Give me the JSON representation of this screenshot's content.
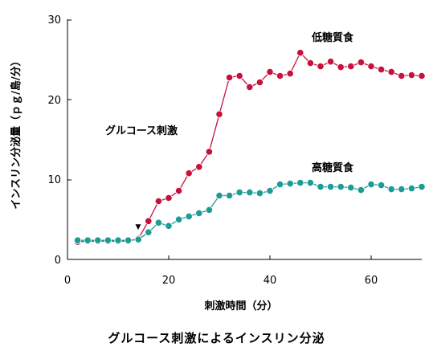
{
  "chart_data": {
    "type": "line",
    "ylabel": "インスリン分泌量（ｐｇ/島/分）",
    "xlabel": "刺激時間（分）",
    "xlim": [
      0,
      70
    ],
    "ylim": [
      0,
      30
    ],
    "x_ticks": [
      "0",
      "20",
      "40",
      "60"
    ],
    "y_ticks": [
      "0",
      "10",
      "20",
      "30"
    ],
    "grid": false,
    "annotations": {
      "stimulus": "グルコース刺激",
      "marker": "▼"
    },
    "series": [
      {
        "name": "低糖質食",
        "color": "#c8103c",
        "x": [
          2,
          4,
          6,
          8,
          10,
          12,
          14,
          16,
          18,
          20,
          22,
          24,
          26,
          28,
          30,
          32,
          34,
          36,
          38,
          40,
          42,
          44,
          46,
          48,
          50,
          52,
          54,
          56,
          58,
          60,
          62,
          64,
          66,
          68,
          70
        ],
        "values": [
          2.2,
          2.3,
          2.3,
          2.3,
          2.3,
          2.3,
          2.6,
          4.8,
          7.3,
          7.7,
          8.6,
          10.8,
          11.6,
          13.5,
          18.2,
          22.8,
          23.0,
          21.6,
          22.2,
          23.5,
          23.0,
          23.3,
          25.9,
          24.6,
          24.2,
          24.8,
          24.1,
          24.2,
          24.7,
          24.2,
          23.8,
          23.5,
          23.0,
          23.1,
          23.0
        ]
      },
      {
        "name": "高糖質食",
        "color": "#1c9c94",
        "x": [
          2,
          4,
          6,
          8,
          10,
          12,
          14,
          16,
          18,
          20,
          22,
          24,
          26,
          28,
          30,
          32,
          34,
          36,
          38,
          40,
          42,
          44,
          46,
          48,
          50,
          52,
          54,
          56,
          58,
          60,
          62,
          64,
          66,
          68,
          70
        ],
        "values": [
          2.4,
          2.4,
          2.4,
          2.4,
          2.4,
          2.4,
          2.5,
          3.4,
          4.6,
          4.2,
          5.0,
          5.4,
          5.8,
          6.2,
          8.0,
          8.0,
          8.4,
          8.4,
          8.3,
          8.6,
          9.4,
          9.5,
          9.6,
          9.6,
          9.1,
          9.1,
          9.1,
          9.0,
          8.7,
          9.4,
          9.3,
          8.8,
          8.8,
          8.9,
          9.1
        ]
      }
    ]
  },
  "caption": "グルコース刺激によるインスリン分泌"
}
